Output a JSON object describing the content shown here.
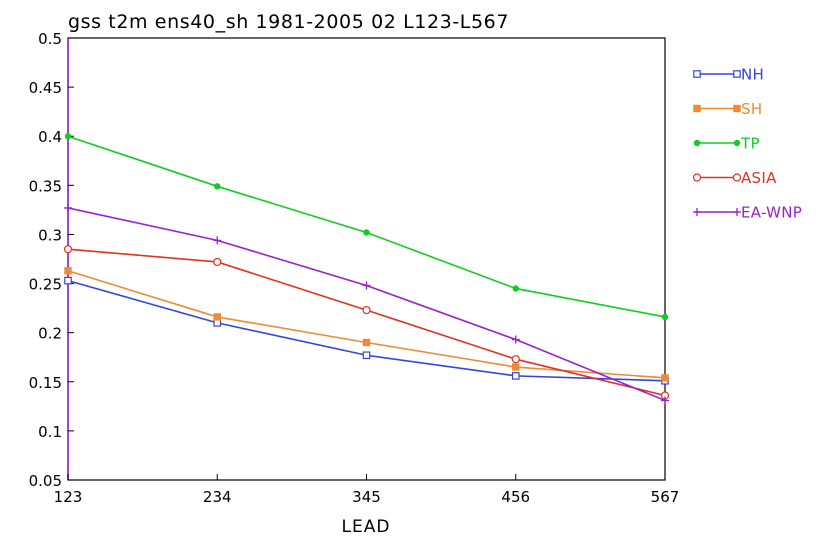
{
  "chart_data": {
    "type": "line",
    "title": "gss t2m ens40_sh 1981-2005 02 L123-L567",
    "xlabel": "LEAD",
    "ylabel": "",
    "categories": [
      "123",
      "234",
      "345",
      "456",
      "567"
    ],
    "ylim": [
      0.05,
      0.5
    ],
    "yticks": [
      "0.05",
      "0.1",
      "0.15",
      "0.2",
      "0.25",
      "0.3",
      "0.35",
      "0.4",
      "0.45",
      "0.5"
    ],
    "grid": false,
    "legend": "right",
    "series": [
      {
        "name": "NH",
        "color": "#3344dd",
        "marker": "open-square",
        "values": [
          0.253,
          0.21,
          0.177,
          0.156,
          0.151
        ]
      },
      {
        "name": "SH",
        "color": "#ee8a33",
        "marker": "filled-square",
        "values": [
          0.263,
          0.216,
          0.19,
          0.165,
          0.154
        ]
      },
      {
        "name": "TP",
        "color": "#11cc22",
        "marker": "filled-circle",
        "values": [
          0.4,
          0.349,
          0.302,
          0.245,
          0.216
        ]
      },
      {
        "name": "ASIA",
        "color": "#dd3322",
        "marker": "open-circle",
        "values": [
          0.285,
          0.272,
          0.223,
          0.173,
          0.136
        ]
      },
      {
        "name": "EA-WNP",
        "color": "#9922cc",
        "marker": "plus",
        "values": [
          0.327,
          0.294,
          0.248,
          0.193,
          0.131
        ]
      }
    ]
  }
}
